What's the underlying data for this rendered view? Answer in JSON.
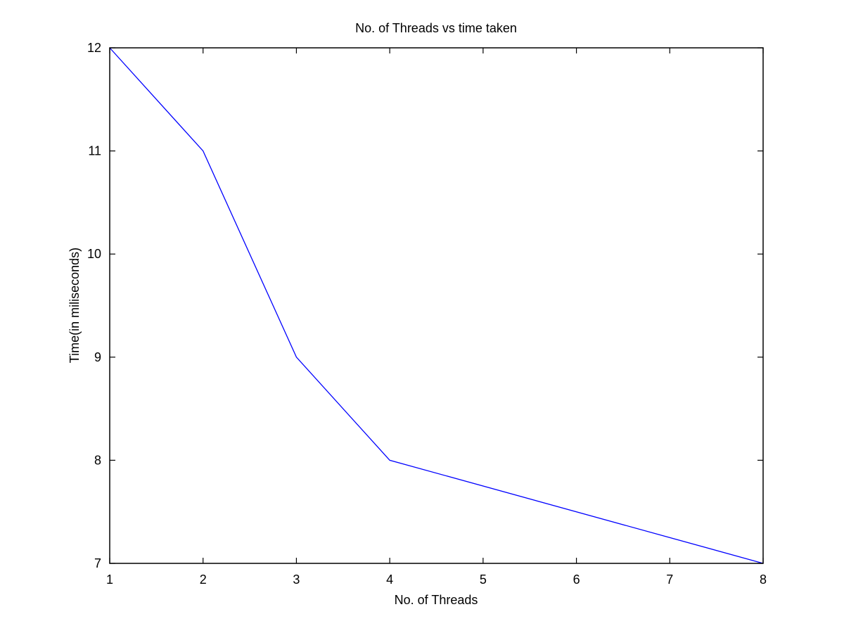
{
  "chart_data": {
    "type": "line",
    "title": "No. of Threads vs time taken",
    "xlabel": "No. of Threads",
    "ylabel": "Time(in miliseconds)",
    "xlim": [
      1,
      8
    ],
    "ylim": [
      7,
      12
    ],
    "xticks": [
      "1",
      "2",
      "3",
      "4",
      "5",
      "6",
      "7",
      "8"
    ],
    "yticks": [
      "7",
      "8",
      "9",
      "10",
      "11",
      "12"
    ],
    "grid": false,
    "series": [
      {
        "color": "#0000ff",
        "x": [
          1,
          2,
          3,
          4,
          8
        ],
        "y": [
          12,
          11,
          9,
          8,
          7
        ]
      }
    ]
  }
}
